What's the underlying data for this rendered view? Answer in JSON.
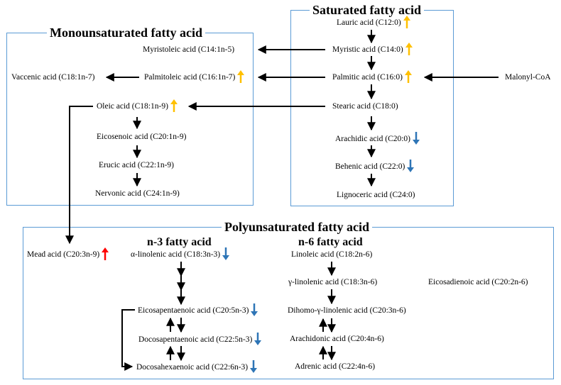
{
  "colors": {
    "border": "#5b9bd5",
    "up_saturated": "#ffc000",
    "up_pufa": "#ff0000",
    "down": "#2e75b6",
    "arrow": "#000000"
  },
  "boxes": {
    "saturated": {
      "title": "Saturated fatty acid"
    },
    "monounsaturated": {
      "title": "Monounsaturated fatty acid"
    },
    "polyunsaturated": {
      "title": "Polyunsaturated fatty acid",
      "n3_title": "n-3 fatty acid",
      "n6_title": "n-6 fatty acid"
    }
  },
  "nodes": {
    "lauric": {
      "label": "Lauric acid (C12:0)",
      "change": "up"
    },
    "myristic": {
      "label": "Myristic  acid (C14:0)",
      "change": "up"
    },
    "palmitic": {
      "label": "Palmitic  acid (C16:0)",
      "change": "up"
    },
    "stearic": {
      "label": "Stearic acid (C18:0)",
      "change": "none"
    },
    "arachidic": {
      "label": "Arachidic  acid (C20:0)",
      "change": "down"
    },
    "behenic": {
      "label": "Behenic  acid (C22:0)",
      "change": "down"
    },
    "lignoceric": {
      "label": "Lignoceric  acid (C24:0)",
      "change": "none"
    },
    "malonyl": {
      "label": "Malonyl-CoA",
      "change": "none"
    },
    "myristoleic": {
      "label": "Myristoleic  acid (C14:1n-5)",
      "change": "none"
    },
    "palmitoleic": {
      "label": "Palmitoleic  acid (C16:1n-7)",
      "change": "up"
    },
    "vaccenic": {
      "label": "Vaccenic acid (C18:1n-7)",
      "change": "none"
    },
    "oleic": {
      "label": "Oleic acid (C18:1n-9)",
      "change": "up"
    },
    "eicosenoic": {
      "label": "Eicosenoic  acid (C20:1n-9)",
      "change": "none"
    },
    "erucic": {
      "label": "Erucic  acid (C22:1n-9)",
      "change": "none"
    },
    "nervonic": {
      "label": "Nervonic  acid (C24:1n-9)",
      "change": "none"
    },
    "mead": {
      "label": "Mead acid (C20:3n-9)",
      "change": "up_red"
    },
    "ala": {
      "label": "α-linolenic  acid (C18:3n-3)",
      "change": "down"
    },
    "epa": {
      "label": "Eicosapentaenoic  acid (C20:5n-3)",
      "change": "down"
    },
    "dpa": {
      "label": "Docosapentaenoic  acid (C22:5n-3)",
      "change": "down"
    },
    "dha": {
      "label": "Docosahexaenoic  acid (C22:6n-3)",
      "change": "down"
    },
    "linoleic": {
      "label": "Linoleic  acid (C18:2n-6)",
      "change": "none"
    },
    "gla": {
      "label": "γ-linolenic  acid (C18:3n-6)",
      "change": "none"
    },
    "eda": {
      "label": "Eicosadienoic  acid (C20:2n-6)",
      "change": "none"
    },
    "dgla": {
      "label": "Dihomo-γ-linolenic  acid (C20:3n-6)",
      "change": "none"
    },
    "aa": {
      "label": "Arachidonic  acid (C20:4n-6)",
      "change": "none"
    },
    "adrenic": {
      "label": "Adrenic  acid (C22:4n-6)",
      "change": "none"
    }
  }
}
